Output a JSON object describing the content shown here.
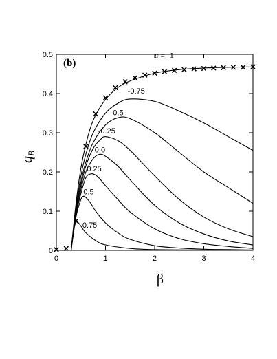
{
  "chart_data": {
    "type": "line",
    "panel_label": "(b)",
    "xlabel": "β",
    "ylabel_main": "q",
    "ylabel_sub": "B",
    "xlim": [
      0,
      4
    ],
    "ylim": [
      0,
      0.5
    ],
    "xticks": [
      "0",
      "1",
      "2",
      "3",
      "4"
    ],
    "yticks": [
      "0",
      "0.1",
      "0.2",
      "0.3",
      "0.4",
      "0.5"
    ],
    "series": [
      {
        "name": "c = -1",
        "c": -1,
        "x": [
          0.3,
          0.4,
          0.5,
          0.6,
          0.7,
          0.8,
          1.0,
          1.25,
          1.5,
          2.0,
          2.5,
          3.0,
          3.5,
          4.0
        ],
        "y": [
          0.0,
          0.12,
          0.21,
          0.27,
          0.315,
          0.345,
          0.385,
          0.415,
          0.432,
          0.452,
          0.461,
          0.465,
          0.467,
          0.468
        ]
      },
      {
        "name": "-0.75",
        "c": -0.75,
        "x": [
          0.3,
          0.4,
          0.5,
          0.6,
          0.75,
          1.0,
          1.25,
          1.5,
          2.0,
          2.5,
          3.0,
          3.5,
          4.0
        ],
        "y": [
          0.0,
          0.11,
          0.19,
          0.245,
          0.3,
          0.35,
          0.375,
          0.386,
          0.38,
          0.355,
          0.325,
          0.29,
          0.255
        ]
      },
      {
        "name": "-0.5",
        "c": -0.5,
        "x": [
          0.3,
          0.4,
          0.5,
          0.6,
          0.75,
          1.0,
          1.25,
          1.5,
          2.0,
          2.5,
          3.0,
          3.5,
          4.0
        ],
        "y": [
          0.0,
          0.105,
          0.175,
          0.225,
          0.275,
          0.32,
          0.338,
          0.336,
          0.3,
          0.25,
          0.2,
          0.16,
          0.12
        ]
      },
      {
        "name": "-0.25",
        "c": -0.25,
        "x": [
          0.3,
          0.4,
          0.5,
          0.6,
          0.75,
          0.9,
          1.0,
          1.25,
          1.5,
          2.0,
          2.5,
          3.0,
          3.5,
          4.0
        ],
        "y": [
          0.0,
          0.1,
          0.165,
          0.215,
          0.26,
          0.283,
          0.29,
          0.28,
          0.255,
          0.19,
          0.13,
          0.085,
          0.055,
          0.035
        ]
      },
      {
        "name": "0.0",
        "c": 0.0,
        "x": [
          0.3,
          0.4,
          0.5,
          0.6,
          0.7,
          0.8,
          0.9,
          1.0,
          1.25,
          1.5,
          2.0,
          2.5,
          3.0,
          3.5,
          4.0
        ],
        "y": [
          0.0,
          0.09,
          0.155,
          0.2,
          0.225,
          0.24,
          0.245,
          0.24,
          0.215,
          0.18,
          0.115,
          0.07,
          0.042,
          0.024,
          0.014
        ]
      },
      {
        "name": "0.25",
        "c": 0.25,
        "x": [
          0.3,
          0.4,
          0.5,
          0.6,
          0.7,
          0.8,
          0.9,
          1.0,
          1.25,
          1.5,
          2.0,
          2.5,
          3.0,
          3.5,
          4.0
        ],
        "y": [
          0.0,
          0.09,
          0.145,
          0.185,
          0.195,
          0.192,
          0.18,
          0.165,
          0.13,
          0.098,
          0.055,
          0.03,
          0.017,
          0.01,
          0.005
        ]
      },
      {
        "name": "0.5",
        "c": 0.5,
        "x": [
          0.3,
          0.4,
          0.5,
          0.55,
          0.6,
          0.7,
          0.8,
          1.0,
          1.25,
          1.5,
          2.0,
          2.5,
          3.0,
          3.5,
          4.0
        ],
        "y": [
          0.0,
          0.085,
          0.13,
          0.138,
          0.135,
          0.12,
          0.1,
          0.07,
          0.045,
          0.028,
          0.012,
          0.006,
          0.003,
          0.002,
          0.001
        ]
      },
      {
        "name": "0.75",
        "c": 0.75,
        "x": [
          0.3,
          0.35,
          0.4,
          0.45,
          0.5,
          0.6,
          0.8,
          1.0,
          1.5,
          2.0,
          3.0,
          4.0
        ],
        "y": [
          0.0,
          0.05,
          0.072,
          0.07,
          0.062,
          0.045,
          0.025,
          0.014,
          0.005,
          0.002,
          0.001,
          0.0
        ]
      }
    ],
    "markers": {
      "series": "c = -1",
      "x": [
        0,
        0.2,
        0.4,
        0.6,
        0.8,
        1.0,
        1.2,
        1.4,
        1.6,
        1.8,
        2.0,
        2.2,
        2.4,
        2.6,
        2.8,
        3.0,
        3.2,
        3.4,
        3.6,
        3.8,
        4.0
      ],
      "y": [
        0.002,
        0.005,
        0.075,
        0.265,
        0.348,
        0.389,
        0.415,
        0.43,
        0.44,
        0.447,
        0.452,
        0.456,
        0.459,
        0.461,
        0.463,
        0.464,
        0.465,
        0.466,
        0.467,
        0.467,
        0.468
      ]
    },
    "curve_labels": [
      {
        "text": "c = -1",
        "x": 2.0,
        "y": 0.49
      },
      {
        "text": "-0.75",
        "x": 1.45,
        "y": 0.4
      },
      {
        "text": "-0.5",
        "x": 1.1,
        "y": 0.345
      },
      {
        "text": "-0.25",
        "x": 0.85,
        "y": 0.298
      },
      {
        "text": "0.0",
        "x": 0.78,
        "y": 0.25
      },
      {
        "text": "0.25",
        "x": 0.62,
        "y": 0.202
      },
      {
        "text": "0.5",
        "x": 0.55,
        "y": 0.143
      },
      {
        "text": "0.75",
        "x": 0.53,
        "y": 0.058
      }
    ],
    "grid": false,
    "legend": "none"
  }
}
